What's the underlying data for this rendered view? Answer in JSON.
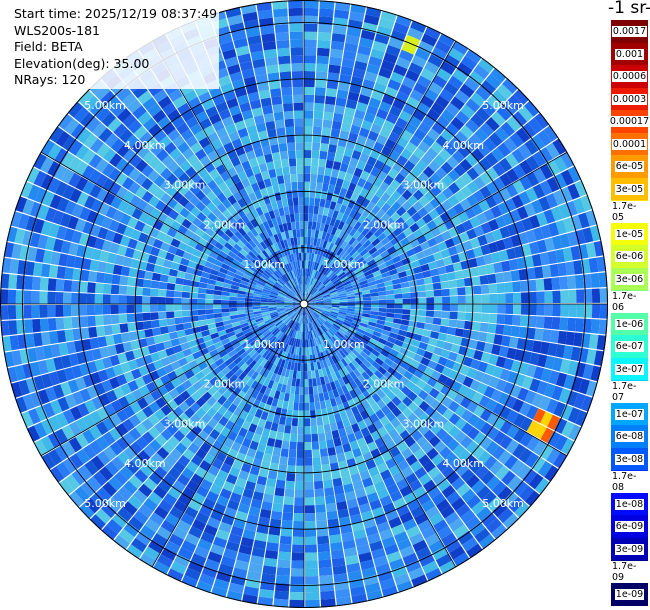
{
  "header": {
    "start_time": "Start time: 2025/12/19 08:37:49",
    "instrument": "WLS200s-181",
    "field": "Field: BETA",
    "elevation": "Elevation(deg): 35.00",
    "nrays": "NRays: 120"
  },
  "colorbar": {
    "title": "-1 sr-",
    "labels": [
      "0.0017",
      "0.001",
      "0.0006",
      "0.0003",
      "0.00017",
      "0.0001",
      "6e-05",
      "3e-05",
      "1.7e-05",
      "1e-05",
      "6e-06",
      "3e-06",
      "1.7e-06",
      "1e-06",
      "6e-07",
      "3e-07",
      "1.7e-07",
      "1e-07",
      "6e-08",
      "3e-08",
      "1.7e-08",
      "1e-08",
      "6e-09",
      "3e-09",
      "1.7e-09",
      "1e-09"
    ],
    "colors": [
      "#7f0000",
      "#a00000",
      "#cc0000",
      "#ee1a00",
      "#ff4400",
      "#ff7000",
      "#ff9a00",
      "#ffbf00",
      "#ffe100",
      "#f5ff0a",
      "#d3ff2b",
      "#aaff55",
      "#7fff80",
      "#55ffaa",
      "#2bffd3",
      "#0af5ff",
      "#00cfff",
      "#00a6ff",
      "#007fff",
      "#0058ff",
      "#0031ff",
      "#000aff",
      "#0000e0",
      "#0000b6",
      "#00008d",
      "#000066"
    ]
  },
  "ppi": {
    "range_labels": [
      "1.00km",
      "2.00km",
      "3.00km",
      "4.00km",
      "5.00km"
    ],
    "max_range_km": 5.4,
    "nrays": 120
  }
}
